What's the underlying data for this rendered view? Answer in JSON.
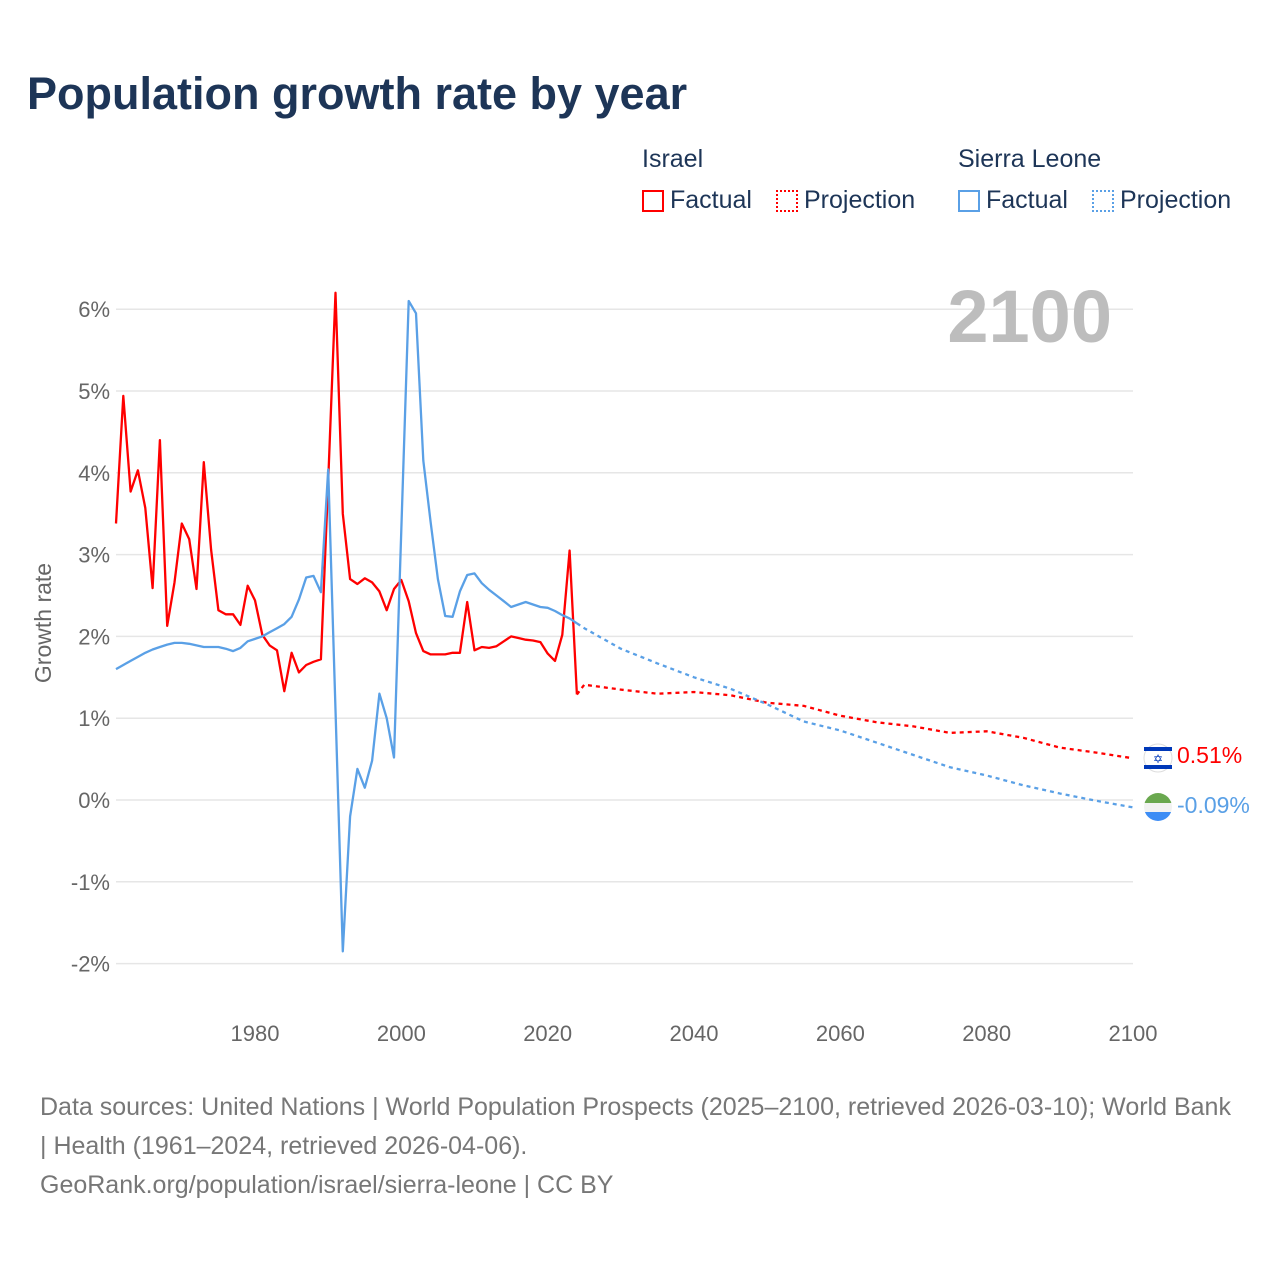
{
  "title": "Population growth rate by year",
  "legend": {
    "groups": [
      {
        "country": "Israel",
        "factual": "Factual",
        "projection": "Projection",
        "color": "#ff0000"
      },
      {
        "country": "Sierra Leone",
        "factual": "Factual",
        "projection": "Projection",
        "color": "#5aa0e6"
      }
    ]
  },
  "year_label": "2100",
  "end_labels": {
    "israel": "0.51%",
    "sierra_leone": "-0.09%"
  },
  "footer": {
    "sources": "Data sources: United Nations | World Population Prospects (2025–2100, retrieved 2026-03-10); World Bank | Health (1961–2024, retrieved 2026-04-06).",
    "credit": "GeoRank.org/population/israel/sierra-leone | CC BY"
  },
  "chart_data": {
    "type": "line",
    "title": "Population growth rate by year",
    "xlabel": "",
    "ylabel": "Growth rate",
    "xlim": [
      1961,
      2100
    ],
    "ylim": [
      -2.3,
      6.3
    ],
    "x_ticks": [
      1980,
      2000,
      2020,
      2040,
      2060,
      2080,
      2100
    ],
    "x_tick_labels": [
      "1980",
      "2000",
      "2020",
      "2040",
      "2060",
      "2080",
      "2100"
    ],
    "y_ticks": [
      -2,
      -1,
      0,
      1,
      2,
      3,
      4,
      5,
      6
    ],
    "y_tick_labels": [
      "-2%",
      "-1%",
      "0%",
      "1%",
      "2%",
      "3%",
      "4%",
      "5%",
      "6%"
    ],
    "grid": true,
    "legend_position": "top-right",
    "series": [
      {
        "name": "Israel Factual",
        "color": "#ff0000",
        "style": "solid",
        "x_start": 1961,
        "values": [
          3.38,
          4.94,
          3.77,
          4.03,
          3.57,
          2.59,
          4.4,
          2.13,
          2.66,
          3.38,
          3.19,
          2.58,
          4.13,
          3.06,
          2.32,
          2.27,
          2.27,
          2.14,
          2.62,
          2.44,
          2.02,
          1.89,
          1.83,
          1.33,
          1.8,
          1.56,
          1.65,
          1.69,
          1.72,
          3.9,
          6.2,
          3.5,
          2.7,
          2.64,
          2.71,
          2.66,
          2.55,
          2.32,
          2.58,
          2.69,
          2.43,
          2.04,
          1.82,
          1.78,
          1.78,
          1.78,
          1.8,
          1.8,
          2.42,
          1.83,
          1.87,
          1.86,
          1.88,
          1.94,
          2.0,
          1.98,
          1.96,
          1.95,
          1.93,
          1.79,
          1.7,
          2.02,
          3.05,
          1.29
        ]
      },
      {
        "name": "Israel Projection",
        "color": "#ff0000",
        "style": "dotted",
        "x": [
          2024,
          2025,
          2030,
          2035,
          2040,
          2045,
          2050,
          2055,
          2060,
          2065,
          2070,
          2075,
          2080,
          2085,
          2090,
          2095,
          2100
        ],
        "values": [
          1.29,
          1.41,
          1.35,
          1.3,
          1.32,
          1.28,
          1.19,
          1.15,
          1.03,
          0.95,
          0.9,
          0.82,
          0.84,
          0.76,
          0.64,
          0.58,
          0.51
        ]
      },
      {
        "name": "Sierra Leone Factual",
        "color": "#5aa0e6",
        "style": "solid",
        "x_start": 1961,
        "values": [
          1.6,
          1.65,
          1.7,
          1.75,
          1.8,
          1.84,
          1.87,
          1.9,
          1.92,
          1.92,
          1.91,
          1.89,
          1.87,
          1.87,
          1.87,
          1.85,
          1.82,
          1.86,
          1.94,
          1.97,
          2.0,
          2.05,
          2.1,
          2.15,
          2.24,
          2.45,
          2.72,
          2.74,
          2.54,
          4.04,
          1.1,
          -1.85,
          -0.2,
          0.38,
          0.15,
          0.48,
          1.3,
          1.0,
          0.52,
          3.3,
          6.1,
          5.95,
          4.15,
          3.4,
          2.7,
          2.25,
          2.24,
          2.55,
          2.75,
          2.77,
          2.65,
          2.57,
          2.5,
          2.43,
          2.36,
          2.39,
          2.42,
          2.39,
          2.36,
          2.35,
          2.31,
          2.26,
          2.22,
          2.16
        ]
      },
      {
        "name": "Sierra Leone Projection",
        "color": "#5aa0e6",
        "style": "dotted",
        "x": [
          2024,
          2025,
          2030,
          2035,
          2040,
          2045,
          2050,
          2055,
          2060,
          2065,
          2070,
          2075,
          2080,
          2085,
          2090,
          2095,
          2100
        ],
        "values": [
          2.16,
          2.1,
          1.85,
          1.67,
          1.5,
          1.36,
          1.17,
          0.96,
          0.85,
          0.7,
          0.55,
          0.4,
          0.3,
          0.18,
          0.08,
          -0.01,
          -0.09
        ]
      }
    ]
  }
}
